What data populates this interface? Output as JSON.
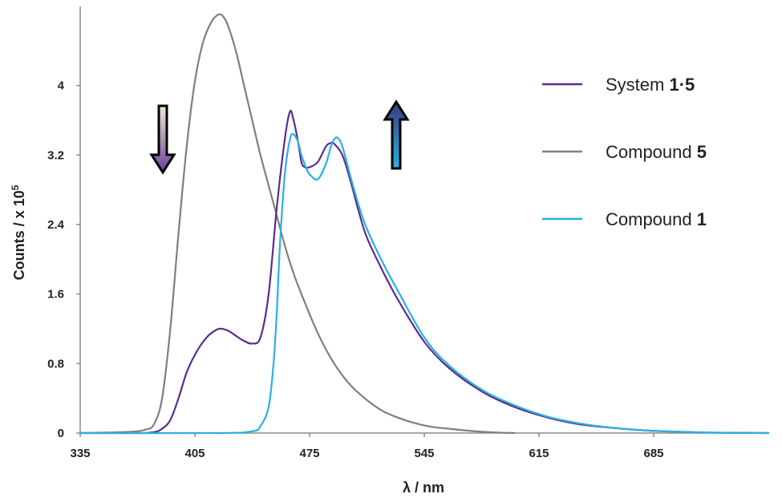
{
  "chart_data": {
    "type": "line",
    "xlabel": "λ / nm",
    "ylabel_main": "Counts / x 10",
    "ylabel_sup": "5",
    "xlim": [
      335,
      755
    ],
    "ylim": [
      0,
      4.8
    ],
    "x_ticks": [
      335,
      405,
      475,
      545,
      615,
      685
    ],
    "y_ticks": [
      0,
      0.8,
      1.6,
      2.4,
      3.2,
      4
    ],
    "grid": false,
    "legend_position": "top-right",
    "series": [
      {
        "name": "System 1·5",
        "legend_prefix": "System ",
        "legend_bold": "1·5",
        "color": "#5b2c8c",
        "x": [
          335,
          370,
          380,
          385,
          390,
          395,
          400,
          405,
          410,
          415,
          420,
          425,
          430,
          435,
          440,
          445,
          450,
          455,
          460,
          463,
          465,
          468,
          470,
          472,
          475,
          480,
          485,
          488,
          490,
          495,
          500,
          505,
          510,
          520,
          530,
          545,
          560,
          580,
          600,
          620,
          640,
          660,
          680,
          700,
          720,
          755
        ],
        "y": [
          0,
          0,
          0.01,
          0.05,
          0.15,
          0.4,
          0.7,
          0.9,
          1.05,
          1.15,
          1.2,
          1.18,
          1.12,
          1.06,
          1.03,
          1.1,
          1.6,
          2.6,
          3.4,
          3.7,
          3.62,
          3.35,
          3.12,
          3.06,
          3.06,
          3.12,
          3.3,
          3.34,
          3.33,
          3.2,
          2.9,
          2.55,
          2.25,
          1.85,
          1.5,
          1.05,
          0.75,
          0.48,
          0.3,
          0.18,
          0.1,
          0.06,
          0.03,
          0.015,
          0.005,
          0
        ]
      },
      {
        "name": "Compound 5",
        "legend_prefix": "Compound ",
        "legend_bold": "5",
        "color": "#7f7f7f",
        "x": [
          335,
          350,
          360,
          370,
          375,
          380,
          385,
          390,
          395,
          400,
          405,
          410,
          415,
          418,
          420,
          422,
          425,
          430,
          435,
          440,
          445,
          450,
          455,
          460,
          465,
          470,
          480,
          490,
          500,
          510,
          520,
          530,
          540,
          550,
          560,
          570,
          580,
          590,
          600
        ],
        "y": [
          0,
          0.005,
          0.01,
          0.02,
          0.04,
          0.1,
          0.4,
          1.2,
          2.3,
          3.3,
          4.05,
          4.5,
          4.73,
          4.8,
          4.82,
          4.8,
          4.7,
          4.4,
          4.0,
          3.6,
          3.2,
          2.85,
          2.5,
          2.15,
          1.85,
          1.6,
          1.15,
          0.8,
          0.55,
          0.38,
          0.25,
          0.17,
          0.11,
          0.07,
          0.05,
          0.03,
          0.015,
          0.005,
          0
        ]
      },
      {
        "name": "Compound 1",
        "legend_prefix": "Compound ",
        "legend_bold": "1",
        "color": "#2ab0e4",
        "x": [
          335,
          420,
          440,
          445,
          450,
          453,
          455,
          457,
          460,
          463,
          465,
          468,
          470,
          473,
          475,
          480,
          485,
          488,
          490,
          492,
          495,
          500,
          505,
          510,
          520,
          530,
          545,
          560,
          580,
          600,
          620,
          640,
          660,
          680,
          700,
          720,
          755
        ],
        "y": [
          0,
          0,
          0.02,
          0.08,
          0.3,
          0.8,
          1.4,
          2.2,
          3.0,
          3.38,
          3.44,
          3.35,
          3.2,
          3.05,
          2.98,
          2.92,
          3.1,
          3.3,
          3.38,
          3.4,
          3.3,
          2.95,
          2.62,
          2.35,
          1.95,
          1.6,
          1.1,
          0.78,
          0.5,
          0.32,
          0.19,
          0.11,
          0.06,
          0.03,
          0.015,
          0.005,
          0
        ]
      }
    ],
    "annotations": [
      {
        "type": "arrow",
        "direction": "down",
        "near_x": 405,
        "near_y": 3.4,
        "gradient": [
          "#e8e0c0",
          "#6a3d9a"
        ]
      },
      {
        "type": "arrow",
        "direction": "up",
        "near_x": 513,
        "near_y": 3.4,
        "gradient": [
          "#2ab0e4",
          "#3a3a7a"
        ]
      }
    ]
  }
}
